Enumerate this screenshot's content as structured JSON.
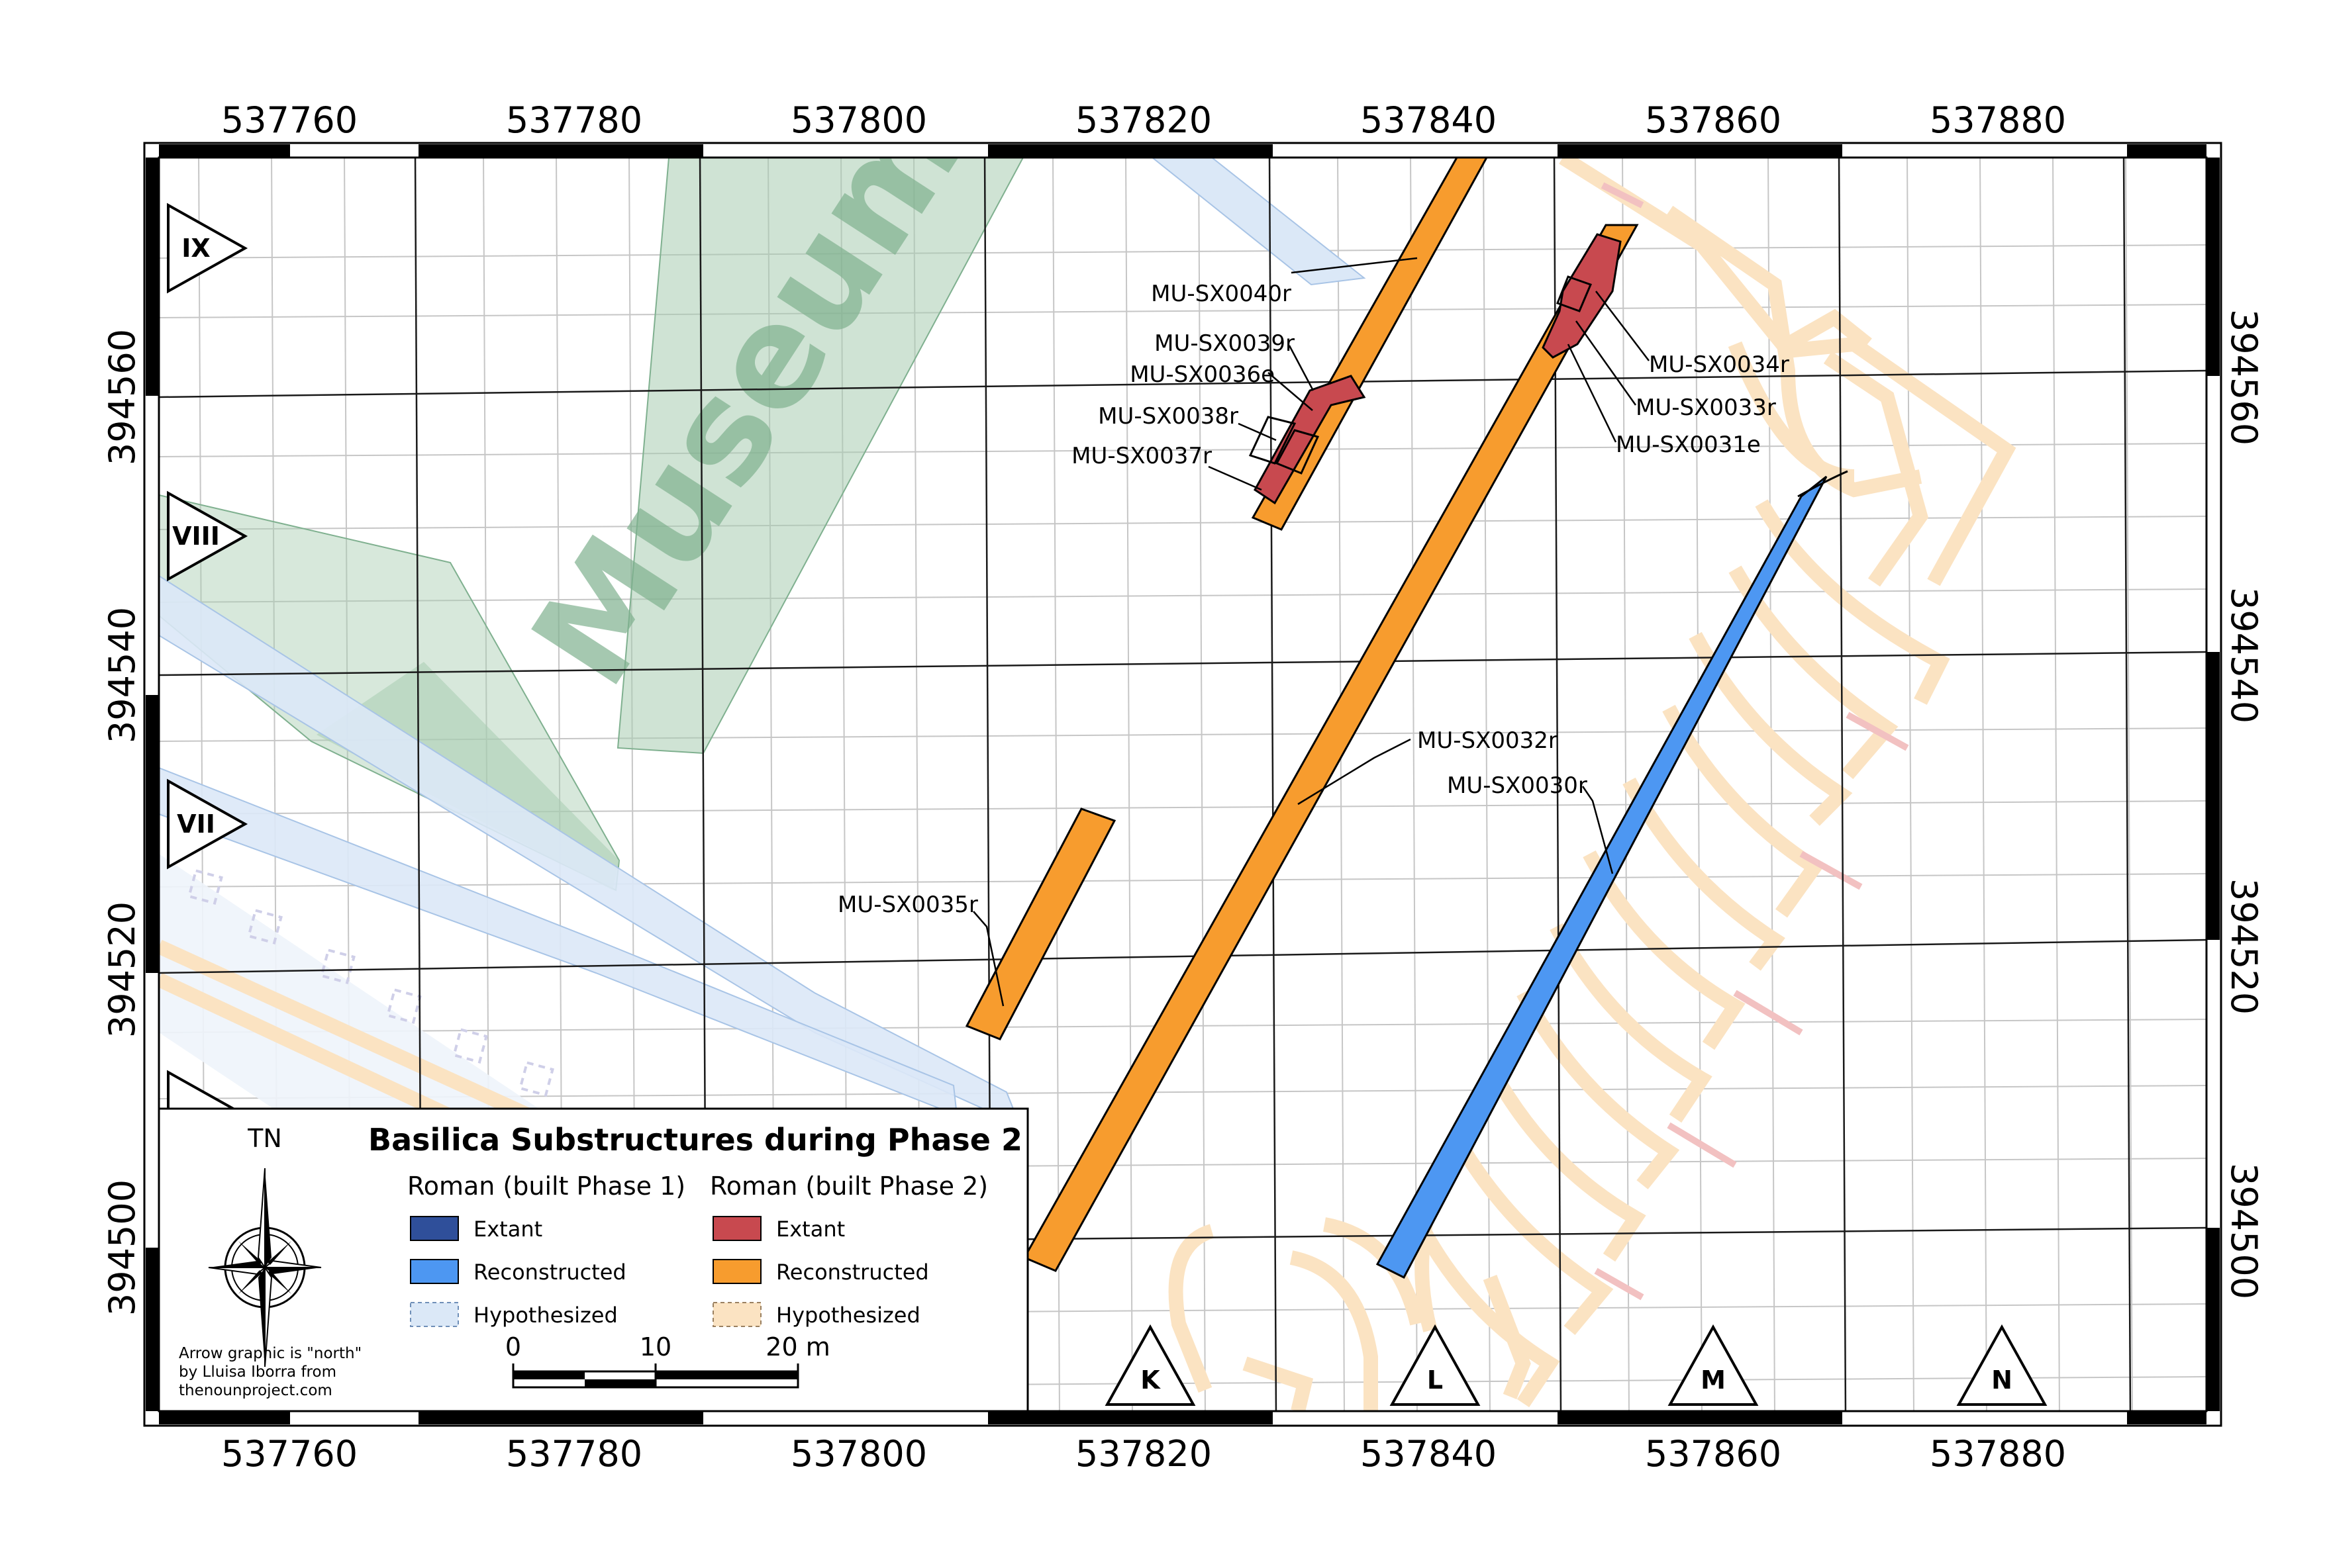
{
  "map": {
    "x_ticks": [
      "537760",
      "537780",
      "537800",
      "537820",
      "537840",
      "537860",
      "537880"
    ],
    "y_ticks": [
      "394560",
      "394540",
      "394520",
      "394500"
    ],
    "sections_left": [
      "IX",
      "VIII",
      "VII"
    ],
    "sections_bottom": [
      "K",
      "L",
      "M",
      "N"
    ],
    "museum_label": "Museum",
    "features": [
      {
        "id": "MU-SX0040r",
        "phase": 2,
        "state": "Reconstructed"
      },
      {
        "id": "MU-SX0039r",
        "phase": 2,
        "state": "Reconstructed"
      },
      {
        "id": "MU-SX0036e",
        "phase": 2,
        "state": "Extant"
      },
      {
        "id": "MU-SX0038r",
        "phase": 2,
        "state": "Reconstructed"
      },
      {
        "id": "MU-SX0037r",
        "phase": 2,
        "state": "Reconstructed"
      },
      {
        "id": "MU-SX0034r",
        "phase": 2,
        "state": "Reconstructed"
      },
      {
        "id": "MU-SX0033r",
        "phase": 2,
        "state": "Reconstructed"
      },
      {
        "id": "MU-SX0031e",
        "phase": 2,
        "state": "Extant"
      },
      {
        "id": "MU-SX0032r",
        "phase": 2,
        "state": "Reconstructed"
      },
      {
        "id": "MU-SX0030r",
        "phase": 1,
        "state": "Reconstructed"
      },
      {
        "id": "MU-SX0035r",
        "phase": 2,
        "state": "Reconstructed"
      }
    ],
    "colors": {
      "phase1_extant": "#2f4f9a",
      "phase1_reconstructed": "#4d97f2",
      "phase1_hypothesized": "#dbe8f7",
      "phase2_extant": "#c8494f",
      "phase2_reconstructed": "#f79c2e",
      "phase2_hypothesized": "#fbe3c2",
      "museum": "#a7ccb0"
    }
  },
  "legend": {
    "north_label": "TN",
    "title": "Basilica Substructures during Phase 2",
    "col1_head": "Roman (built Phase 1)",
    "col2_head": "Roman (built Phase 2)",
    "col1_items": [
      "Extant",
      "Reconstructed",
      "Hypothesized"
    ],
    "col2_items": [
      "Extant",
      "Reconstructed",
      "Hypothesized"
    ],
    "credit": [
      "Arrow graphic is \"north\"",
      "by Lluisa Iborra from",
      "thenounproject.com"
    ],
    "scale_labels": [
      "0",
      "10",
      "20 m"
    ]
  }
}
